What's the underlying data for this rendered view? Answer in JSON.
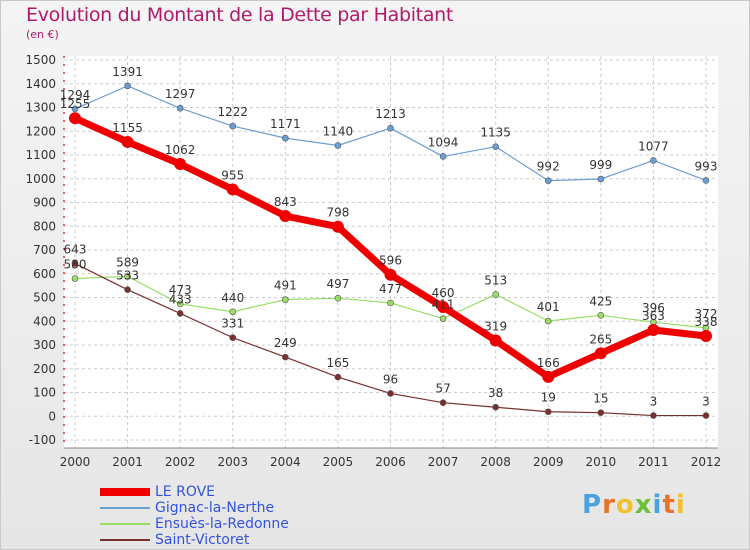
{
  "header": {
    "title": "Evolution du Montant de la Dette par Habitant",
    "subtitle": "(en €)"
  },
  "logo": {
    "text": "Proxiti",
    "colors": [
      "#4aa3df",
      "#e8732a",
      "#f2c12e",
      "#6cbf3a",
      "#4aa3df",
      "#e8732a",
      "#f2c12e"
    ]
  },
  "chart_data": {
    "type": "line",
    "title": "Evolution du Montant de la Dette par Habitant",
    "subtitle": "(en €)",
    "x": [
      "2000",
      "2001",
      "2002",
      "2003",
      "2004",
      "2005",
      "2006",
      "2007",
      "2008",
      "2009",
      "2010",
      "2011",
      "2012"
    ],
    "ylim": [
      -100,
      1500
    ],
    "yticks": [
      -100,
      0,
      100,
      200,
      300,
      400,
      500,
      600,
      700,
      800,
      900,
      1000,
      1100,
      1200,
      1300,
      1400,
      1500
    ],
    "grid": "horizontal dashed",
    "legend_position": "bottom-left",
    "series": [
      {
        "name": "LE ROVE",
        "color": "#ee0000",
        "values": [
          1255,
          1155,
          1062,
          955,
          843,
          798,
          596,
          460,
          319,
          166,
          265,
          363,
          338
        ],
        "labels": [
          "1255",
          "1155",
          "1062",
          "955",
          "843",
          "798",
          "596",
          "460",
          "319",
          "166",
          "265",
          "363",
          "338"
        ]
      },
      {
        "name": "Gignac-la-Nerthe",
        "color": "#6a9fd4",
        "values": [
          1294,
          1391,
          1297,
          1222,
          1171,
          1140,
          1213,
          1094,
          1135,
          992,
          999,
          1077,
          993
        ],
        "labels": [
          "1294",
          "1391",
          "1297",
          "1222",
          "1171",
          "1140",
          "1213",
          "1094",
          "1135",
          "992",
          "999",
          "1077",
          "993"
        ]
      },
      {
        "name": "Ensuès-la-Redonne",
        "color": "#99dd66",
        "values": [
          580,
          589,
          473,
          440,
          491,
          497,
          477,
          411,
          513,
          401,
          425,
          396,
          372
        ],
        "labels": [
          "580",
          "589",
          "473",
          "440",
          "491",
          "497",
          "477",
          "411",
          "513",
          "401",
          "425",
          "396",
          "372"
        ]
      },
      {
        "name": "Saint-Victoret",
        "color": "#7a2f2f",
        "values": [
          643,
          533,
          433,
          331,
          249,
          165,
          96,
          57,
          38,
          19,
          15,
          3,
          3
        ],
        "labels": [
          "643",
          "533",
          "433",
          "331",
          "249",
          "165",
          "96",
          "57",
          "38",
          "19",
          "15",
          "3",
          "3"
        ]
      }
    ]
  }
}
